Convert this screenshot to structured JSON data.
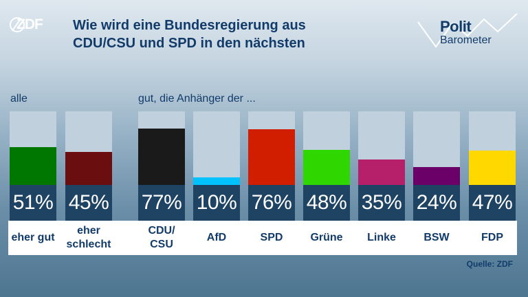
{
  "logo_text": "ZDF",
  "title_lines": [
    "Wie wird eine Bundesregierung aus",
    "CDU/CSU und SPD in den nächsten"
  ],
  "brand": {
    "line1": "Polit",
    "line2": "Barometer"
  },
  "section_labels": {
    "all": "alle",
    "supporters": "gut, die Anhänger der ..."
  },
  "source": "Quelle: ZDF",
  "colors": {
    "title": "#123b6a",
    "eher_gut": "#007700",
    "eher_schlecht": "#6a0e10",
    "CDU/CSU": "#1a1a1a",
    "AfD": "#00c2ff",
    "SPD": "#d21e00",
    "Grüne": "#2fd600",
    "Linke": "#b6206a",
    "BSW": "#6b0068",
    "FDP": "#ffd800",
    "value_box": "#1f4363",
    "bar_background": "#c0d1dd"
  },
  "chart_data": {
    "type": "bar",
    "ylim": [
      0,
      100
    ],
    "unit": "%",
    "groups": [
      {
        "label": "alle",
        "categories": [
          "eher gut",
          "eher schlecht"
        ],
        "values": [
          51,
          45
        ],
        "value_labels": [
          "51%",
          "45%"
        ]
      },
      {
        "label": "gut, die Anhänger der ...",
        "categories": [
          "CDU/ CSU",
          "AfD",
          "SPD",
          "Grüne",
          "Linke",
          "BSW",
          "FDP"
        ],
        "values": [
          77,
          10,
          76,
          48,
          35,
          24,
          47
        ],
        "value_labels": [
          "77%",
          "10%",
          "76%",
          "48%",
          "35%",
          "24%",
          "47%"
        ]
      }
    ]
  }
}
